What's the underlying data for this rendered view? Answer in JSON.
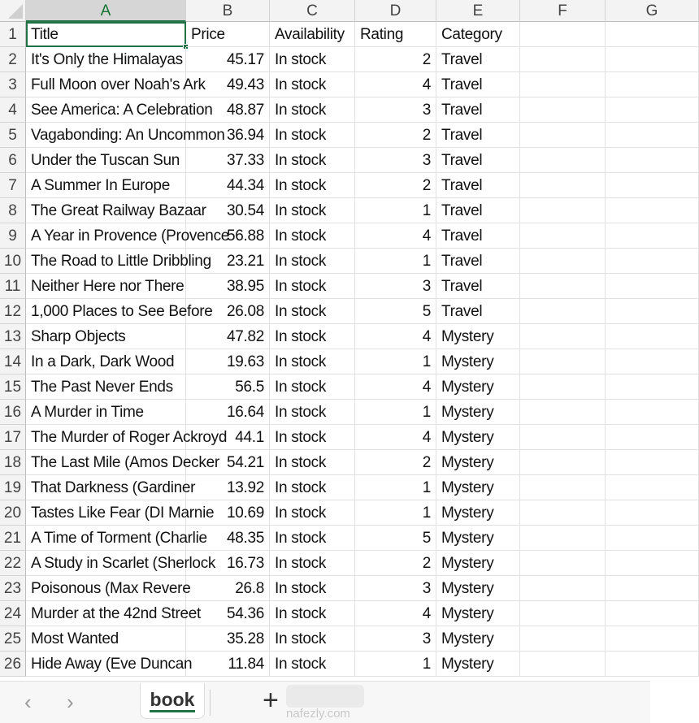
{
  "columns": [
    "A",
    "B",
    "C",
    "D",
    "E",
    "F",
    "G"
  ],
  "headers": {
    "title": "Title",
    "price": "Price",
    "availability": "Availability",
    "rating": "Rating",
    "category": "Category"
  },
  "rows": [
    [
      "It's Only the Himalayas",
      "45.17",
      "In stock",
      "2",
      "Travel"
    ],
    [
      "Full Moon over Noah's Ark",
      "49.43",
      "In stock",
      "4",
      "Travel"
    ],
    [
      "See America: A Celebration",
      "48.87",
      "In stock",
      "3",
      "Travel"
    ],
    [
      "Vagabonding: An Uncommon",
      "36.94",
      "In stock",
      "2",
      "Travel"
    ],
    [
      "Under the Tuscan Sun",
      "37.33",
      "In stock",
      "3",
      "Travel"
    ],
    [
      "A Summer In Europe",
      "44.34",
      "In stock",
      "2",
      "Travel"
    ],
    [
      "The Great Railway Bazaar",
      "30.54",
      "In stock",
      "1",
      "Travel"
    ],
    [
      "A Year in Provence (Provence",
      "56.88",
      "In stock",
      "4",
      "Travel"
    ],
    [
      "The Road to Little Dribbling",
      "23.21",
      "In stock",
      "1",
      "Travel"
    ],
    [
      "Neither Here nor There",
      "38.95",
      "In stock",
      "3",
      "Travel"
    ],
    [
      "1,000 Places to See Before",
      "26.08",
      "In stock",
      "5",
      "Travel"
    ],
    [
      "Sharp Objects",
      "47.82",
      "In stock",
      "4",
      "Mystery"
    ],
    [
      "In a Dark, Dark Wood",
      "19.63",
      "In stock",
      "1",
      "Mystery"
    ],
    [
      "The Past Never Ends",
      "56.5",
      "In stock",
      "4",
      "Mystery"
    ],
    [
      "A Murder in Time",
      "16.64",
      "In stock",
      "1",
      "Mystery"
    ],
    [
      "The Murder of Roger Ackroyd",
      "44.1",
      "In stock",
      "4",
      "Mystery"
    ],
    [
      "The Last Mile (Amos Decker",
      "54.21",
      "In stock",
      "2",
      "Mystery"
    ],
    [
      "That Darkness (Gardiner",
      "13.92",
      "In stock",
      "1",
      "Mystery"
    ],
    [
      "Tastes Like Fear (DI Marnie",
      "10.69",
      "In stock",
      "1",
      "Mystery"
    ],
    [
      "A Time of Torment (Charlie",
      "48.35",
      "In stock",
      "5",
      "Mystery"
    ],
    [
      "A Study in Scarlet (Sherlock",
      "16.73",
      "In stock",
      "2",
      "Mystery"
    ],
    [
      "Poisonous (Max Revere",
      "26.8",
      "In stock",
      "3",
      "Mystery"
    ],
    [
      "Murder at the 42nd Street",
      "54.36",
      "In stock",
      "4",
      "Mystery"
    ],
    [
      "Most Wanted",
      "35.28",
      "In stock",
      "3",
      "Mystery"
    ],
    [
      "Hide Away (Eve Duncan",
      "11.84",
      "In stock",
      "1",
      "Mystery"
    ]
  ],
  "sheet_tabs": {
    "active": "book",
    "prev_icon": "chevron-left",
    "next_icon": "chevron-right",
    "add_label": "+"
  },
  "watermark": "nafezly.com",
  "accent": "#217346"
}
